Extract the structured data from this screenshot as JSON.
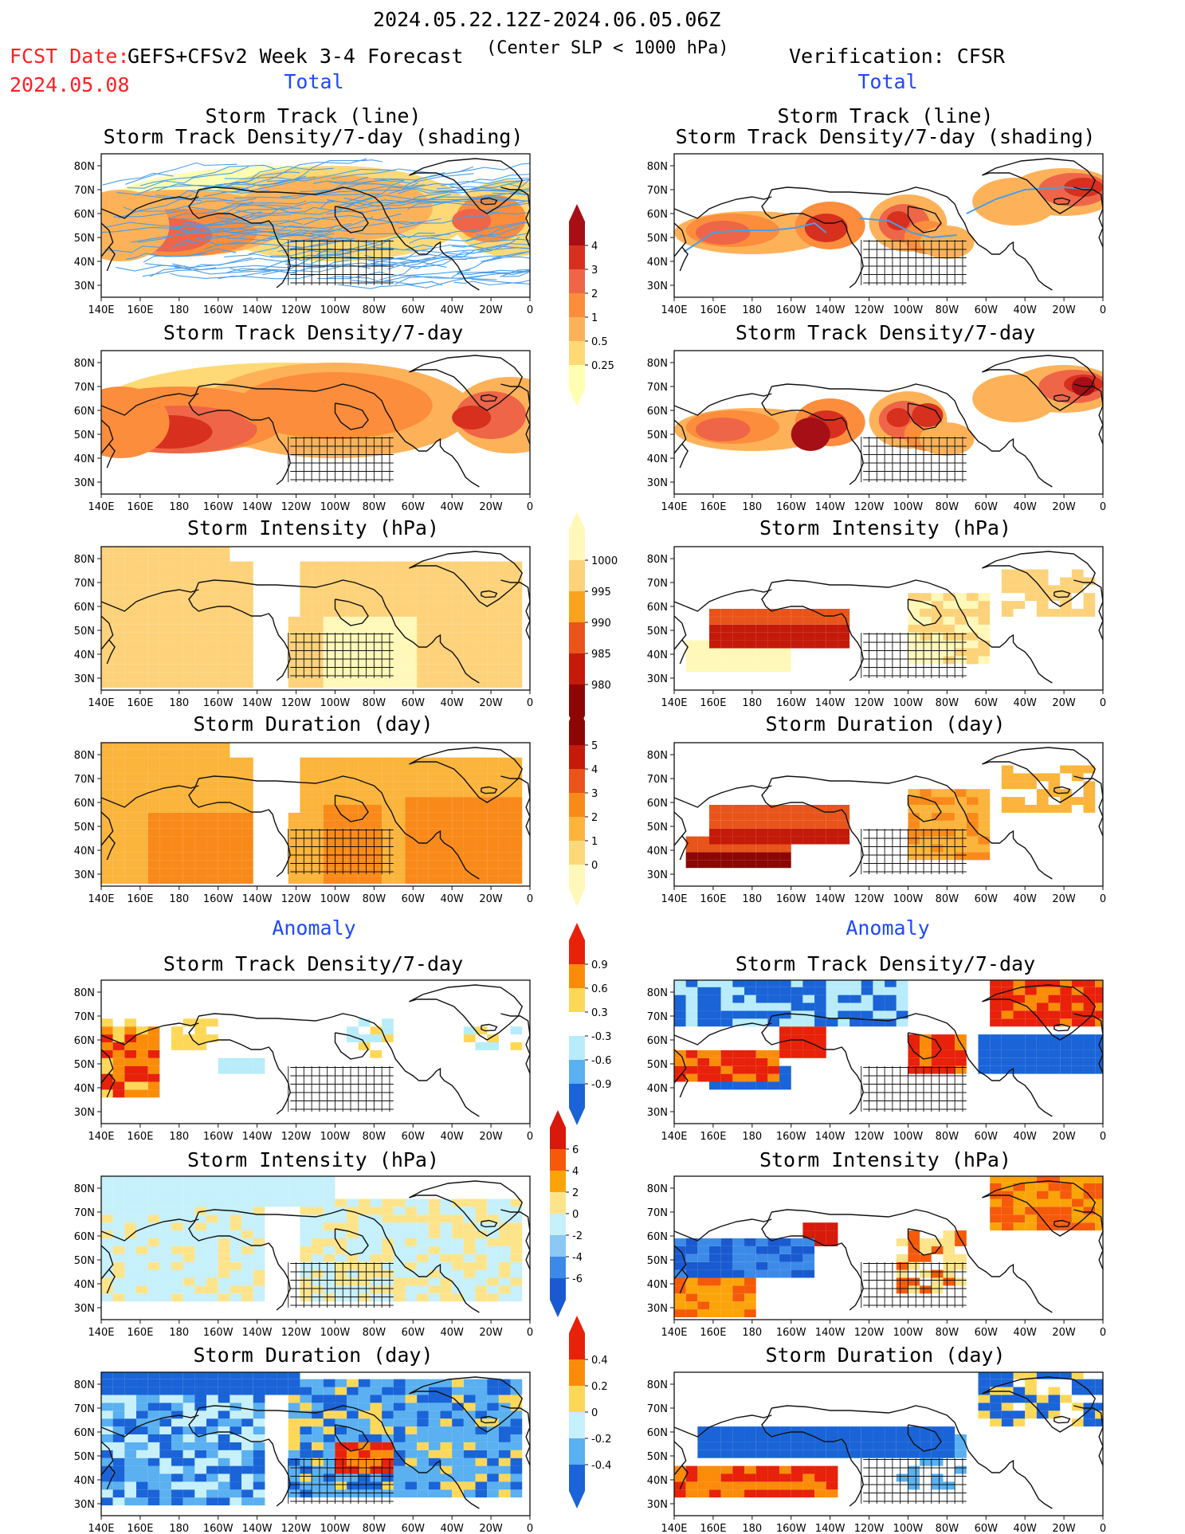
{
  "header": {
    "date_range": "2024.05.22.12Z-2024.06.05.06Z",
    "fcst_label": "FCST Date:",
    "fcst_date": "2024.05.08",
    "model": "GEFS+CFSv2 Week 3-4 Forecast",
    "criterion": "(Center SLP < 1000 hPa)",
    "verification": "Verification: CFSR"
  },
  "sections": {
    "total": "Total",
    "anomaly": "Anomaly"
  },
  "panel_titles": {
    "track_line": "Storm Track (line)",
    "track_density_shading": "Storm Track Density/7-day (shading)",
    "track_density": "Storm Track Density/7-day",
    "intensity": "Storm Intensity (hPa)",
    "duration": "Storm Duration (day)"
  },
  "axes": {
    "lat_ticks": [
      "80N",
      "70N",
      "60N",
      "50N",
      "40N",
      "30N"
    ],
    "lon_ticks": [
      "140E",
      "160E",
      "180",
      "160W",
      "140W",
      "120W",
      "100W",
      "80W",
      "60W",
      "40W",
      "20W",
      "0"
    ]
  },
  "colorbars": {
    "density": {
      "labels": [
        "4",
        "3",
        "2",
        "1",
        "0.5",
        "0.25"
      ],
      "colors": [
        "#a50f15",
        "#d7301f",
        "#ef6548",
        "#fc8d3c",
        "#fdb25a",
        "#fed976",
        "#ffffb2"
      ]
    },
    "intensity": {
      "labels": [
        "1000",
        "995",
        "990",
        "985",
        "980"
      ],
      "colors": [
        "#fff8b8",
        "#fdd27a",
        "#f9a41c",
        "#e8541a",
        "#c41a0a",
        "#8c0606"
      ]
    },
    "duration": {
      "labels": [
        "5",
        "4",
        "3",
        "2",
        "1",
        "0"
      ],
      "colors": [
        "#8c0606",
        "#c41a0a",
        "#e8541a",
        "#f98a1a",
        "#fbb43c",
        "#fdd878",
        "#fff8b8"
      ]
    },
    "density_anom": {
      "labels": [
        "0.9",
        "0.6",
        "0.3",
        "-0.3",
        "-0.6",
        "-0.9"
      ],
      "colors": [
        "#e8210a",
        "#fb8c0a",
        "#fdd858",
        "#ffffff",
        "#b8ecfa",
        "#5ab0f0",
        "#1a64d8"
      ]
    },
    "intensity_anom": {
      "labels": [
        "6",
        "4",
        "2",
        "0",
        "-2",
        "-4",
        "-6"
      ],
      "colors": [
        "#d81a0a",
        "#f55a0a",
        "#fba40a",
        "#fde48a",
        "#c6f0fb",
        "#8ac8f5",
        "#3c8ae8",
        "#1a5ad0"
      ]
    },
    "duration_anom": {
      "labels": [
        "0.4",
        "0.2",
        "0",
        "-0.2",
        "-0.4"
      ],
      "colors": [
        "#e8210a",
        "#fb8c0a",
        "#fdd858",
        "#c6f0fb",
        "#5ab0f0",
        "#1a64d8"
      ]
    }
  },
  "palette": {
    "track_line": "#4a9ee8",
    "title_red": "#ff2020",
    "section_blue": "#1e48ff"
  }
}
